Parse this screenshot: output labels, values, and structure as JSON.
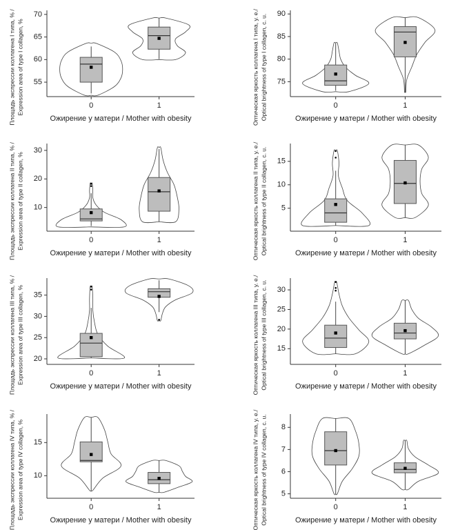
{
  "chart_data": [
    {
      "type": "violin",
      "y_label": [
        "Площадь экспрессии коллагена I типа, % /",
        "Expression area of type I collagen, %"
      ],
      "x_label": "Ожирение у матери / Mother with obesity",
      "categories": [
        "0",
        "1"
      ],
      "ylim": [
        51.8,
        70.9
      ],
      "yticks": [
        55,
        60,
        65,
        70
      ],
      "groups": [
        {
          "min": 52.5,
          "q1": 55,
          "median": 59,
          "q3": 60.5,
          "max": 62.9,
          "mean": 58.3,
          "outliers": [],
          "violin_range": [
            52.1,
            63.6
          ],
          "violin_widths": [
            0.2,
            0.7,
            0.9,
            0.95,
            0.9,
            0.7,
            0.15
          ]
        },
        {
          "min": 60.1,
          "q1": 62.3,
          "median": 65.3,
          "q3": 67.2,
          "max": 69.2,
          "mean": 64.7,
          "outliers": [],
          "violin_range": [
            60,
            69.2
          ],
          "violin_widths": [
            0.5,
            0.8,
            0.55,
            0.5,
            0.8,
            0.9,
            0.2
          ]
        }
      ]
    },
    {
      "type": "violin",
      "y_label": [
        "Оптическая яркость коллагена I типа, у. е./",
        "Optical brightness of type I collagen, c. u."
      ],
      "x_label": "Ожирение у матери / Mother with obesity",
      "categories": [
        "0",
        "1"
      ],
      "ylim": [
        71.7,
        90.8
      ],
      "yticks": [
        75,
        80,
        85,
        90
      ],
      "groups": [
        {
          "min": 73,
          "q1": 74.2,
          "median": 75.2,
          "q3": 78.7,
          "max": 83.6,
          "mean": 76.7,
          "outliers": [],
          "violin_range": [
            72.8,
            83.6
          ],
          "violin_widths": [
            0.4,
            1.0,
            0.6,
            0.3,
            0.15,
            0.1,
            0.05
          ]
        },
        {
          "min": 72.8,
          "q1": 80.5,
          "median": 86,
          "q3": 87.2,
          "max": 89.2,
          "mean": 83.7,
          "outliers": [],
          "violin_range": [
            72.8,
            89.2
          ],
          "violin_widths": [
            0.02,
            0.05,
            0.2,
            0.35,
            0.6,
            0.9,
            0.4
          ]
        }
      ]
    },
    {
      "type": "violin",
      "y_label": [
        "Площадь экспрессии коллагена II типа, % /",
        "Expression area of type II collagen, %"
      ],
      "x_label": "Ожирение у матери / Mother with obesity",
      "categories": [
        "0",
        "1"
      ],
      "ylim": [
        1.7,
        32.4
      ],
      "yticks": [
        10,
        20,
        30
      ],
      "groups": [
        {
          "min": 3.5,
          "q1": 5.3,
          "median": 6,
          "q3": 9.5,
          "max": 15,
          "mean": 8.2,
          "outliers": [
            18.3,
            17.5
          ],
          "violin_range": [
            3.2,
            18.5
          ],
          "violin_widths": [
            1.0,
            0.9,
            0.4,
            0.15,
            0.05,
            0.05,
            0.03
          ]
        },
        {
          "min": 5,
          "q1": 8.7,
          "median": 15.5,
          "q3": 20.5,
          "max": 30.5,
          "mean": 15.8,
          "outliers": [],
          "violin_range": [
            5,
            31
          ],
          "violin_widths": [
            0.5,
            0.6,
            0.55,
            0.45,
            0.25,
            0.12,
            0.05
          ]
        }
      ]
    },
    {
      "type": "violin",
      "y_label": [
        "Оптическая яркость коллагена II типа, у. е./",
        "Optical brightness of type II collagen, c. u."
      ],
      "x_label": "Ожирение у матери / Mother with obesity",
      "categories": [
        "0",
        "1"
      ],
      "ylim": [
        0.1,
        18.8
      ],
      "yticks": [
        5,
        10,
        15
      ],
      "groups": [
        {
          "min": 1.3,
          "q1": 2,
          "median": 4,
          "q3": 7,
          "max": 13,
          "mean": 5.8,
          "outliers": [
            17.2,
            15.8
          ],
          "violin_range": [
            1.3,
            17.3
          ],
          "violin_widths": [
            1.0,
            0.8,
            0.35,
            0.2,
            0.08,
            0.1,
            0.05
          ]
        },
        {
          "min": 3,
          "q1": 6,
          "median": 10.3,
          "q3": 15.2,
          "max": 18.5,
          "mean": 10.4,
          "outliers": [],
          "violin_range": [
            3,
            18.5
          ],
          "violin_widths": [
            0.3,
            0.7,
            0.5,
            0.45,
            0.5,
            0.7,
            0.4
          ]
        }
      ]
    },
    {
      "type": "violin",
      "y_label": [
        "Площадь экспрессии коллагена III типа, % /",
        "Expression area of type III collagen, %"
      ],
      "x_label": "Ожирение у матери / Mother with obesity",
      "categories": [
        "0",
        "1"
      ],
      "ylim": [
        18.7,
        39
      ],
      "yticks": [
        20,
        25,
        30,
        35
      ],
      "groups": [
        {
          "min": 20.2,
          "q1": 20.5,
          "median": 23.7,
          "q3": 26,
          "max": 32,
          "mean": 25,
          "outliers": [
            37,
            36.3
          ],
          "violin_range": [
            20.2,
            37
          ],
          "violin_widths": [
            1.0,
            0.5,
            0.2,
            0.1,
            0.05,
            0.05,
            0.03
          ]
        },
        {
          "min": 31,
          "q1": 34.5,
          "median": 35.8,
          "q3": 36.5,
          "max": 38.5,
          "mean": 34.7,
          "outliers": [
            29.2
          ],
          "violin_range": [
            29,
            38.8
          ],
          "violin_widths": [
            0.05,
            0.1,
            0.2,
            0.5,
            1.0,
            0.9,
            0.3
          ]
        }
      ]
    },
    {
      "type": "violin",
      "y_label": [
        "Оптическая яркость коллагена III типа, у. е./",
        "Optical brightness of type III collagen, c. u."
      ],
      "x_label": "Ожирение у матери / Mother with obesity",
      "categories": [
        "0",
        "1"
      ],
      "ylim": [
        11,
        33
      ],
      "yticks": [
        15,
        20,
        25,
        30
      ],
      "groups": [
        {
          "min": 13.7,
          "q1": 15.3,
          "median": 17.7,
          "q3": 21,
          "max": 27,
          "mean": 19,
          "outliers": [
            32,
            30.5,
            29.8
          ],
          "violin_range": [
            13.7,
            32
          ],
          "violin_widths": [
            0.6,
            1.0,
            0.7,
            0.4,
            0.2,
            0.1,
            0.03
          ]
        },
        {
          "min": 13.7,
          "q1": 17.5,
          "median": 19,
          "q3": 21.5,
          "max": 27.3,
          "mean": 19.6,
          "outliers": [],
          "violin_range": [
            13.7,
            27.3
          ],
          "violin_widths": [
            0.1,
            0.6,
            1.0,
            0.8,
            0.4,
            0.2,
            0.1
          ]
        }
      ]
    },
    {
      "type": "violin",
      "y_label": [
        "Площадь экспрессии коллагена IV типа, % /",
        "Expression area of type IV collagen, %"
      ],
      "x_label": "Ожирение у матери / Mother with obesity",
      "categories": [
        "0",
        "1"
      ],
      "ylim": [
        6.6,
        19.3
      ],
      "yticks": [
        10,
        15
      ],
      "groups": [
        {
          "min": 7.8,
          "q1": 12.1,
          "median": 12.3,
          "q3": 15.1,
          "max": 18.8,
          "mean": 13.2,
          "outliers": [],
          "violin_range": [
            7.8,
            18.8
          ],
          "violin_widths": [
            0.05,
            0.35,
            0.9,
            0.6,
            0.5,
            0.4,
            0.2
          ]
        },
        {
          "min": 7.5,
          "q1": 8.8,
          "median": 9.4,
          "q3": 10.5,
          "max": 12.3,
          "mean": 9.6,
          "outliers": [],
          "violin_range": [
            7.5,
            12.3
          ],
          "violin_widths": [
            0.15,
            0.6,
            1.0,
            0.8,
            0.7,
            0.6,
            0.2
          ]
        }
      ]
    },
    {
      "type": "violin",
      "y_label": [
        "Оптическая яркость коллагена IV типа, у. е./",
        "Optical brightness of type IV collagen, c. u."
      ],
      "x_label": "Ожирение у матери / Mother with obesity",
      "categories": [
        "0",
        "1"
      ],
      "ylim": [
        4.8,
        8.6
      ],
      "yticks": [
        5,
        6,
        7,
        8
      ],
      "groups": [
        {
          "min": 5,
          "q1": 6.3,
          "median": 6.95,
          "q3": 7.8,
          "max": 8.4,
          "mean": 6.95,
          "outliers": [],
          "violin_range": [
            5,
            8.4
          ],
          "violin_widths": [
            0.05,
            0.2,
            0.5,
            0.7,
            0.7,
            0.6,
            0.4
          ]
        },
        {
          "min": 5.2,
          "q1": 5.95,
          "median": 6.1,
          "q3": 6.4,
          "max": 7.4,
          "mean": 6.15,
          "outliers": [],
          "violin_range": [
            5.2,
            7.4
          ],
          "violin_widths": [
            0.1,
            0.4,
            1.0,
            0.7,
            0.3,
            0.1,
            0.05
          ]
        }
      ]
    }
  ]
}
